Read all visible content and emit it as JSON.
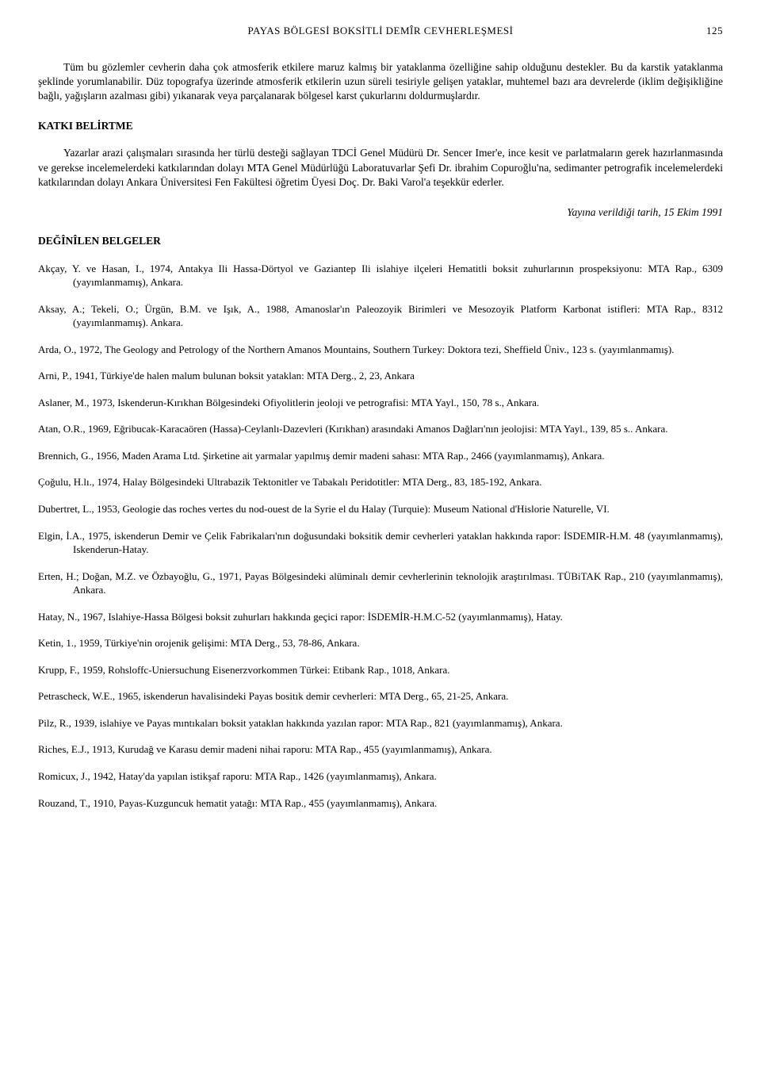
{
  "header": {
    "running_title": "PAYAS BÖLGESİ BOKSİTLİ DEMÎR CEVHERLEŞMESİ",
    "page_number": "125"
  },
  "paragraphs": {
    "p1": "Tüm bu gözlemler cevherin daha çok atmosferik etkilere maruz kalmış bir yataklanma özelliğine sahip olduğunu destekler. Bu da karstik yataklanma şeklinde yorumlanabilir. Düz topografya üzerinde atmosferik etkilerin uzun süreli tesiriyle gelişen yataklar, muhtemel bazı ara devrelerde (iklim değişikliğine bağlı, yağışların azalması gibi) yıkanarak veya parçalanarak bölgesel karst çukurlarını doldurmuşlardır.",
    "katki_heading": "KATKI BELİRTME",
    "p2": "Yazarlar arazi çalışmaları sırasında her türlü desteği sağlayan TDCİ Genel Müdürü Dr. Sencer Imer'e, ince kesit ve parlatmaların gerek hazırlanmasında ve gerekse incelemelerdeki katkılarından dolayı MTA Genel Müdürlüğü Laboratuvarlar Şefi Dr. ibrahim Copuroğlu'na, sedimanter petrografik incelemelerdeki katkılarından dolayı Ankara Üniversitesi Fen Fakültesi öğretim Üyesi Doç. Dr. Baki Varol'a teşekkür ederler.",
    "pub_date": "Yayına verildiği tarih, 15 Ekim 1991",
    "refs_heading": "DEĞÎNÎLEN BELGELER"
  },
  "references": [
    "Akçay, Y. ve Hasan, I., 1974, Antakya Ili Hassa-Dörtyol ve Gaziantep Ili islahiye ilçeleri Hematitli boksit zuhurlarının prospeksiyonu: MTA Rap., 6309 (yayımlanmamış), Ankara.",
    "Aksay, A.; Tekeli, O.; Ürgün, B.M. ve Işık, A., 1988, Amanoslar'ın Paleozoyik Birimleri ve Mesozoyik Platform Karbonat istifleri: MTA Rap., 8312 (yayımlanmamış). Ankara.",
    "Arda, O., 1972, The Geology and Petrology of the Northern Amanos Mountains, Southern Turkey: Doktora tezi, Sheffield Üniv., 123 s. (yayımlanmamış).",
    "Arni, P., 1941, Türkiye'de halen malum bulunan boksit yataklan: MTA Derg., 2, 23, Ankara",
    "Aslaner, M., 1973, Iskenderun-Kırıkhan Bölgesindeki Ofiyolitlerin jeoloji ve petrografisi: MTA Yayl., 150, 78 s., Ankara.",
    "Atan, O.R., 1969, Eğribucak-Karacaören (Hassa)-Ceylanlı-Dazevleri (Kırıkhan) arasındaki Amanos Dağları'nın jeolojisi: MTA Yayl., 139, 85 s.. Ankara.",
    "Brennich, G., 1956, Maden Arama Ltd. Şirketine ait yarmalar yapılmış demir madeni sahası: MTA Rap., 2466 (yayımlanmamış), Ankara.",
    "Çoğulu, H.lı., 1974, Halay Bölgesindeki Ultrabazik Tektonitler ve Tabakalı Peridotitler: MTA Derg., 83, 185-192, Ankara.",
    "Dubertret, L., 1953, Geologie das roches vertes du nod-ouest de la Syrie el du Halay (Turquie): Museum National d'Hislorie Naturelle, VI.",
    "Elgin, İ.A., 1975, iskenderun Demir ve Çelik Fabrikaları'nın doğusundaki boksitik demir cevherleri yataklan hakkında rapor: İSDEMIR-H.M. 48 (yayımlanmamış), Iskenderun-Hatay.",
    "Erten, H.; Doğan, M.Z. ve Özbayoğlu, G., 1971, Payas Bölgesindeki alüminalı demir cevherlerinin teknolojik araştırılması. TÜBiTAK Rap., 210 (yayımlanmamış), Ankara.",
    "Hatay, N., 1967, Islahiye-Hassa Bölgesi boksit zuhurları hakkında geçici rapor: İSDEMİR-H.M.C-52 (yayımlanmamış), Hatay.",
    "Ketin, 1., 1959, Türkiye'nin orojenik gelişimi: MTA Derg., 53, 78-86, Ankara.",
    "Krupp, F., 1959, Rohsloffc-Uniersuchung Eisenerzvorkommen Türkei: Etibank Rap., 1018, Ankara.",
    "Petrascheck, W.E., 1965, iskenderun havalisindeki Payas bositık demir cevherleri: MTA Derg., 65, 21-25, Ankara.",
    "Pilz, R., 1939, islahiye ve Payas mıntıkaları boksit yataklan hakkında yazılan rapor: MTA Rap., 821 (yayımlanmamış), Ankara.",
    "Riches, E.J., 1913, Kurudağ ve Karasu demir madeni nihai raporu: MTA Rap., 455 (yayımlanmamış), Ankara.",
    "Romicux, J., 1942, Hatay'da yapılan istikşaf raporu: MTA Rap., 1426 (yayımlanmamış), Ankara.",
    "Rouzand, T., 1910, Payas-Kuzguncuk hematit yatağı: MTA Rap., 455 (yayımlanmamış), Ankara."
  ],
  "style": {
    "body_font_size": 13.5,
    "ref_font_size": 13,
    "header_font_size": 13,
    "text_color": "#000000",
    "background_color": "#ffffff"
  }
}
